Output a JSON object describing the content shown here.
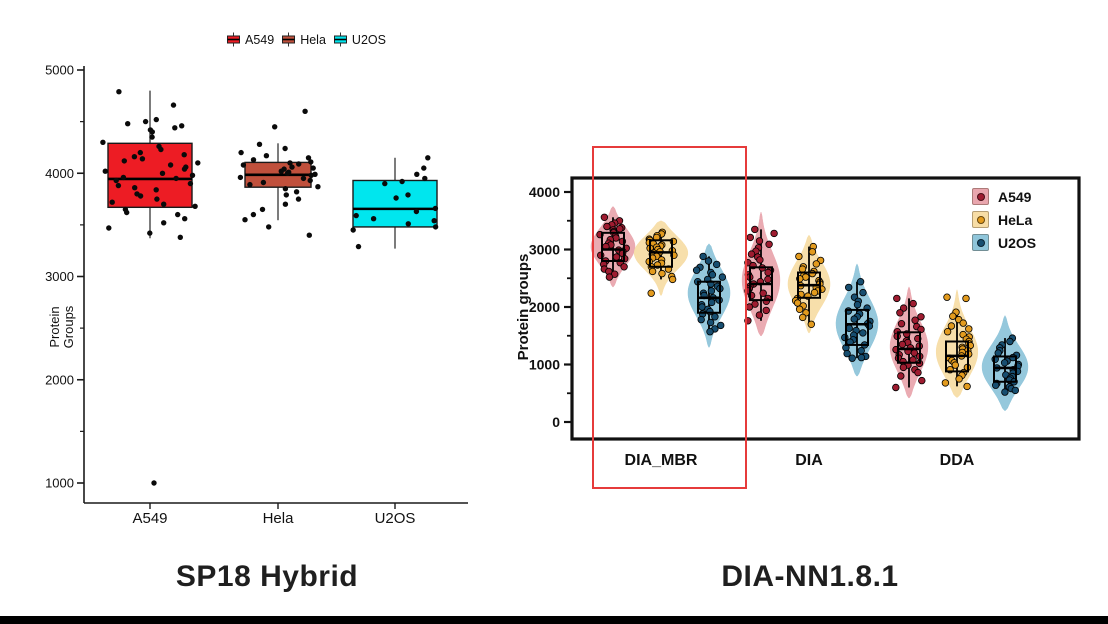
{
  "page": {
    "background": "#ffffff",
    "bottom_bar_color": "#000000"
  },
  "chart_data": [
    {
      "type": "bar",
      "subtype": "boxplot-jitter",
      "title": "SP18 Hybrid",
      "ylabel": [
        "Protein",
        "Groups"
      ],
      "ylim": [
        1000,
        5000
      ],
      "yticks": [
        1000,
        2000,
        3000,
        4000,
        5000
      ],
      "yticks_minor": [
        1500,
        2500,
        3500,
        4500
      ],
      "grid": "off",
      "legend_position": "top-center",
      "categories": [
        "A549",
        "Hela",
        "U2OS"
      ],
      "legend": [
        {
          "label": "A549",
          "color": "#ed1c24"
        },
        {
          "label": "Hela",
          "color": "#c0503c"
        },
        {
          "label": "U2OS",
          "color": "#00e6ee"
        }
      ],
      "series": [
        {
          "name": "A549",
          "color": "#ed1c24",
          "box": {
            "q1": 3670,
            "median": 3945,
            "q3": 4290,
            "whisker_low": 3370,
            "whisker_high": 4800
          },
          "points": [
            4790,
            4660,
            4520,
            4500,
            4480,
            4460,
            4440,
            4420,
            4400,
            4350,
            4300,
            4260,
            4230,
            4200,
            4180,
            4160,
            4140,
            4120,
            4100,
            4080,
            4060,
            4040,
            4020,
            4000,
            3980,
            3960,
            3950,
            3930,
            3900,
            3880,
            3860,
            3840,
            3800,
            3780,
            3750,
            3720,
            3700,
            3680,
            3650,
            3620,
            3600,
            3560,
            3520,
            3470,
            3420,
            3380
          ],
          "outliers": [
            1000
          ]
        },
        {
          "name": "Hela",
          "color": "#c0503c",
          "box": {
            "q1": 3865,
            "median": 3985,
            "q3": 4105,
            "whisker_low": 3545,
            "whisker_high": 4290
          },
          "points": [
            4600,
            4450,
            4280,
            4240,
            4200,
            4170,
            4150,
            4130,
            4110,
            4100,
            4090,
            4080,
            4060,
            4050,
            4040,
            4020,
            4010,
            4000,
            3990,
            3980,
            3960,
            3950,
            3930,
            3910,
            3890,
            3870,
            3850,
            3820,
            3790,
            3750,
            3700,
            3650,
            3600,
            3550,
            3480,
            3400
          ],
          "outliers": []
        },
        {
          "name": "U2OS",
          "color": "#00e6ee",
          "box": {
            "q1": 3480,
            "median": 3655,
            "q3": 3930,
            "whisker_low": 3270,
            "whisker_high": 4150
          },
          "points": [
            4150,
            4050,
            3990,
            3950,
            3920,
            3900,
            3790,
            3760,
            3660,
            3630,
            3590,
            3560,
            3540,
            3510,
            3480,
            3450,
            3290
          ],
          "outliers": []
        }
      ]
    },
    {
      "type": "bar",
      "subtype": "violin-box-jitter",
      "title": "DIA-NN1.8.1",
      "ylabel": "Protein groups",
      "ylim": [
        0,
        4000
      ],
      "yticks": [
        0,
        1000,
        2000,
        3000,
        4000
      ],
      "yticks_minor": [
        500,
        1500,
        2500,
        3500
      ],
      "grid": "off",
      "legend_position": "top-right-inside",
      "categories": [
        "DIA_MBR",
        "DIA",
        "DDA"
      ],
      "cell_lines": [
        {
          "name": "A549",
          "violin_color": "#e9a6ae",
          "point_color": "#9e1c30"
        },
        {
          "name": "HeLa",
          "violin_color": "#f7dda6",
          "point_color": "#e39b1e"
        },
        {
          "name": "U2OS",
          "violin_color": "#8fc5da",
          "point_color": "#174e70"
        }
      ],
      "highlight": {
        "group": "DIA_MBR",
        "color": "#e63b3b"
      },
      "groups": [
        {
          "category": "DIA_MBR",
          "cells": [
            {
              "line": "A549",
              "violin_range": [
                2350,
                3750
              ],
              "violin_peak": 3050,
              "violin_halfwidth": 22,
              "box": {
                "q1": 2800,
                "median": 3000,
                "q3": 3290,
                "whisker_low": 2520,
                "whisker_high": 3560
              },
              "points": [
                3560,
                3500,
                3460,
                3430,
                3400,
                3380,
                3360,
                3340,
                3310,
                3290,
                3260,
                3230,
                3200,
                3170,
                3140,
                3110,
                3080,
                3050,
                3020,
                2990,
                2960,
                2930,
                2900,
                2870,
                2840,
                2800,
                2770,
                2740,
                2700,
                2660,
                2620,
                2570,
                2520
              ]
            },
            {
              "line": "HeLa",
              "violin_range": [
                2200,
                3500
              ],
              "violin_peak": 2950,
              "violin_halfwidth": 27,
              "box": {
                "q1": 2700,
                "median": 2950,
                "q3": 3160,
                "whisker_low": 2480,
                "whisker_high": 3300
              },
              "points": [
                3300,
                3270,
                3240,
                3210,
                3180,
                3160,
                3140,
                3120,
                3100,
                3080,
                3060,
                3040,
                3020,
                3000,
                2980,
                2960,
                2940,
                2920,
                2900,
                2880,
                2850,
                2820,
                2790,
                2760,
                2730,
                2700,
                2660,
                2620,
                2580,
                2530,
                2480,
                2240
              ]
            },
            {
              "line": "U2OS",
              "violin_range": [
                1300,
                3100
              ],
              "violin_peak": 2250,
              "violin_halfwidth": 21,
              "box": {
                "q1": 1900,
                "median": 2160,
                "q3": 2440,
                "whisker_low": 1570,
                "whisker_high": 2880
              },
              "points": [
                2880,
                2800,
                2740,
                2690,
                2640,
                2600,
                2560,
                2520,
                2480,
                2440,
                2400,
                2360,
                2320,
                2280,
                2240,
                2200,
                2160,
                2120,
                2080,
                2040,
                2000,
                1960,
                1920,
                1880,
                1830,
                1780,
                1730,
                1680,
                1620,
                1570
              ]
            }
          ]
        },
        {
          "category": "DIA",
          "cells": [
            {
              "line": "A549",
              "violin_range": [
                1500,
                3650
              ],
              "violin_peak": 2450,
              "violin_halfwidth": 19,
              "box": {
                "q1": 2120,
                "median": 2400,
                "q3": 2690,
                "whisker_low": 1760,
                "whisker_high": 3350
              },
              "points": [
                3350,
                3280,
                3210,
                3150,
                3090,
                3030,
                2970,
                2920,
                2870,
                2820,
                2770,
                2720,
                2680,
                2640,
                2600,
                2560,
                2520,
                2480,
                2440,
                2400,
                2360,
                2320,
                2280,
                2240,
                2200,
                2150,
                2100,
                2050,
                2000,
                1940,
                1860,
                1760
              ]
            },
            {
              "line": "HeLa",
              "violin_range": [
                1550,
                3250
              ],
              "violin_peak": 2400,
              "violin_halfwidth": 21,
              "box": {
                "q1": 2160,
                "median": 2380,
                "q3": 2600,
                "whisker_low": 1700,
                "whisker_high": 3050
              },
              "points": [
                3050,
                2960,
                2880,
                2810,
                2750,
                2700,
                2660,
                2620,
                2580,
                2550,
                2520,
                2490,
                2460,
                2430,
                2400,
                2370,
                2340,
                2310,
                2280,
                2250,
                2220,
                2190,
                2150,
                2110,
                2070,
                2020,
                1960,
                1900,
                1820,
                1700
              ]
            },
            {
              "line": "U2OS",
              "violin_range": [
                800,
                2750
              ],
              "violin_peak": 1700,
              "violin_halfwidth": 21,
              "box": {
                "q1": 1340,
                "median": 1700,
                "q3": 1950,
                "whisker_low": 1110,
                "whisker_high": 2440
              },
              "points": [
                2440,
                2340,
                2250,
                2170,
                2100,
                2040,
                1980,
                1930,
                1880,
                1830,
                1790,
                1750,
                1710,
                1670,
                1630,
                1590,
                1550,
                1510,
                1470,
                1430,
                1390,
                1340,
                1290,
                1240,
                1190,
                1140,
                1120,
                1110
              ]
            }
          ]
        },
        {
          "category": "DDA",
          "cells": [
            {
              "line": "A549",
              "violin_range": [
                420,
                2350
              ],
              "violin_peak": 1300,
              "violin_halfwidth": 19,
              "box": {
                "q1": 1030,
                "median": 1270,
                "q3": 1560,
                "whisker_low": 600,
                "whisker_high": 2150
              },
              "points": [
                2150,
                2060,
                1980,
                1900,
                1830,
                1770,
                1710,
                1660,
                1610,
                1570,
                1530,
                1490,
                1450,
                1410,
                1380,
                1350,
                1320,
                1290,
                1260,
                1230,
                1200,
                1170,
                1140,
                1110,
                1080,
                1050,
                1020,
                990,
                950,
                910,
                860,
                800,
                720,
                600
              ]
            },
            {
              "line": "HeLa",
              "violin_range": [
                430,
                2300
              ],
              "violin_peak": 1200,
              "violin_halfwidth": 21,
              "box": {
                "q1": 880,
                "median": 1150,
                "q3": 1400,
                "whisker_low": 620,
                "whisker_high": 1910
              },
              "points": [
                2170,
                2150,
                1910,
                1840,
                1780,
                1720,
                1670,
                1620,
                1570,
                1520,
                1480,
                1440,
                1400,
                1360,
                1330,
                1300,
                1270,
                1240,
                1210,
                1180,
                1150,
                1110,
                1070,
                1030,
                990,
                950,
                910,
                860,
                810,
                750,
                680,
                620
              ]
            },
            {
              "line": "U2OS",
              "violin_range": [
                200,
                1850
              ],
              "violin_peak": 950,
              "violin_halfwidth": 23,
              "box": {
                "q1": 700,
                "median": 940,
                "q3": 1140,
                "whisker_low": 520,
                "whisker_high": 1460
              },
              "points": [
                1460,
                1400,
                1340,
                1290,
                1240,
                1200,
                1160,
                1120,
                1090,
                1060,
                1030,
                1000,
                970,
                940,
                910,
                880,
                850,
                820,
                790,
                760,
                730,
                700,
                670,
                640,
                610,
                580,
                550,
                520
              ]
            }
          ]
        }
      ]
    }
  ]
}
